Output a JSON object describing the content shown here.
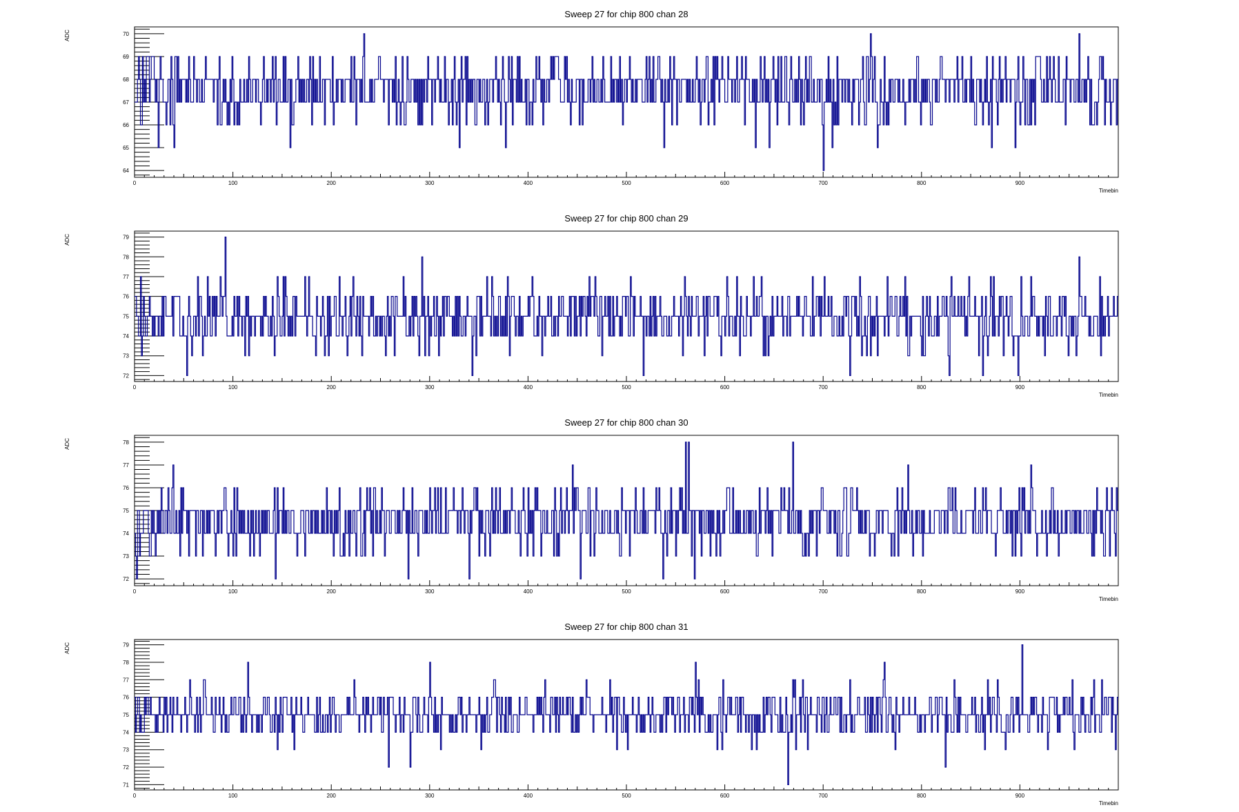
{
  "colors": {
    "line": "#00008b",
    "axis": "#000000",
    "background": "#ffffff"
  },
  "chart_data": [
    {
      "type": "line",
      "title": "Sweep 27 for chip 800 chan 28",
      "xlabel": "Timebin",
      "ylabel": "ADC",
      "xlim": [
        0,
        1000
      ],
      "ylim": [
        63.7,
        70.3
      ],
      "xticks": [
        0,
        100,
        200,
        300,
        400,
        500,
        600,
        700,
        800,
        900
      ],
      "yticks": [
        64,
        65,
        66,
        67,
        68,
        69,
        70
      ],
      "grid": false,
      "baseline": 67.6,
      "spread": 1.1,
      "min": 64,
      "max": 70,
      "seed": 28,
      "spikes": [
        [
          4,
          69
        ],
        [
          6,
          66
        ],
        [
          12,
          69
        ],
        [
          14,
          69
        ],
        [
          40,
          65
        ],
        [
          233,
          70
        ],
        [
          330,
          65
        ],
        [
          538,
          65
        ],
        [
          700,
          64
        ],
        [
          748,
          70
        ],
        [
          871,
          65
        ],
        [
          895,
          65
        ],
        [
          960,
          70
        ]
      ]
    },
    {
      "type": "line",
      "title": "Sweep 27 for chip 800 chan 29",
      "xlabel": "Timebin",
      "ylabel": "ADC",
      "xlim": [
        0,
        1000
      ],
      "ylim": [
        71.7,
        79.3
      ],
      "xticks": [
        0,
        100,
        200,
        300,
        400,
        500,
        600,
        700,
        800,
        900
      ],
      "yticks": [
        72,
        73,
        74,
        75,
        76,
        77,
        78,
        79
      ],
      "grid": false,
      "baseline": 74.9,
      "spread": 1.1,
      "min": 72,
      "max": 79,
      "seed": 29,
      "spikes": [
        [
          92,
          79
        ],
        [
          53,
          72
        ],
        [
          343,
          72
        ],
        [
          517,
          72
        ],
        [
          727,
          72
        ],
        [
          828,
          72
        ],
        [
          862,
          72
        ],
        [
          898,
          72
        ],
        [
          292,
          78
        ],
        [
          960,
          78
        ]
      ]
    },
    {
      "type": "line",
      "title": "Sweep 27 for chip 800 chan 30",
      "xlabel": "Timebin",
      "ylabel": "ADC",
      "xlim": [
        0,
        1000
      ],
      "ylim": [
        71.7,
        78.3
      ],
      "xticks": [
        0,
        100,
        200,
        300,
        400,
        500,
        600,
        700,
        800,
        900
      ],
      "yticks": [
        72,
        73,
        74,
        75,
        76,
        77,
        78
      ],
      "grid": false,
      "baseline": 74.6,
      "spread": 1.0,
      "min": 72,
      "max": 78,
      "seed": 30,
      "spikes": [
        [
          2,
          72
        ],
        [
          143,
          72
        ],
        [
          278,
          72
        ],
        [
          340,
          72
        ],
        [
          453,
          72
        ],
        [
          537,
          72
        ],
        [
          569,
          72
        ],
        [
          560,
          78
        ],
        [
          563,
          78
        ],
        [
          669,
          78
        ]
      ]
    },
    {
      "type": "line",
      "title": "Sweep 27 for chip 800 chan 31",
      "xlabel": "Timebin",
      "ylabel": "ADC",
      "xlim": [
        0,
        1000
      ],
      "ylim": [
        70.7,
        79.3
      ],
      "xticks": [
        0,
        100,
        200,
        300,
        400,
        500,
        600,
        700,
        800,
        900
      ],
      "yticks": [
        71,
        72,
        73,
        74,
        75,
        76,
        77,
        78,
        79
      ],
      "grid": false,
      "baseline": 75.0,
      "spread": 1.0,
      "min": 71,
      "max": 79,
      "seed": 31,
      "spikes": [
        [
          258,
          72
        ],
        [
          280,
          72
        ],
        [
          664,
          71
        ],
        [
          902,
          79
        ],
        [
          115,
          78
        ],
        [
          300,
          78
        ],
        [
          570,
          78
        ],
        [
          627,
          73
        ]
      ]
    }
  ]
}
